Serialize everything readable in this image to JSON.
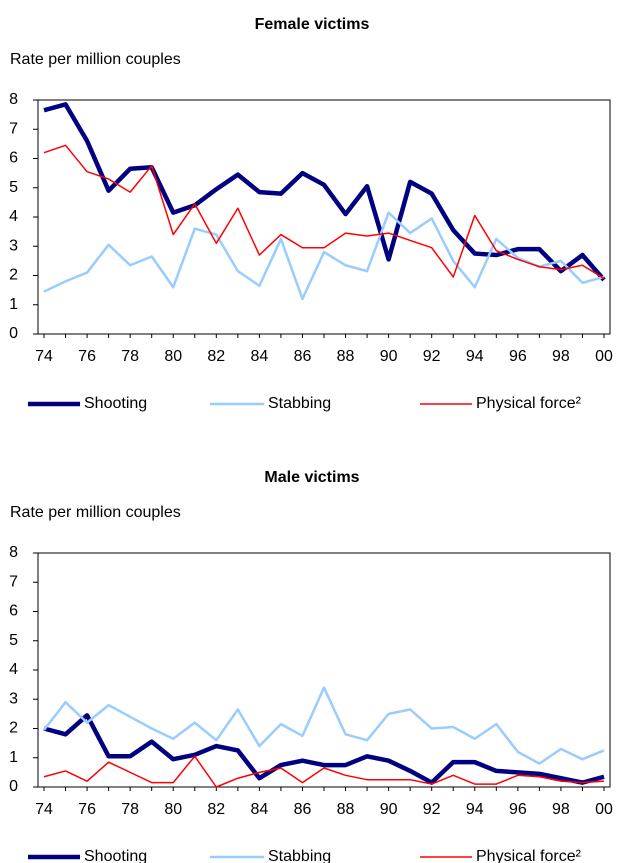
{
  "chart_data": [
    {
      "type": "line",
      "title": "Female victims",
      "y_label": "Rate per million couples",
      "categories": [
        "74",
        null,
        "76",
        null,
        "78",
        null,
        "80",
        null,
        "82",
        null,
        "84",
        null,
        "86",
        null,
        "88",
        null,
        "90",
        null,
        "92",
        null,
        "94",
        null,
        "96",
        null,
        "98",
        null,
        "00"
      ],
      "ylim": [
        0,
        8
      ],
      "yticks": [
        0,
        1,
        2,
        3,
        4,
        5,
        6,
        7,
        8
      ],
      "series": [
        {
          "name": "Shooting",
          "color": "#000080",
          "values": [
            7.65,
            7.85,
            6.6,
            4.9,
            5.65,
            5.7,
            4.15,
            4.4,
            4.95,
            5.45,
            4.85,
            4.8,
            5.5,
            5.1,
            4.1,
            5.05,
            2.55,
            5.2,
            4.8,
            3.55,
            2.75,
            2.7,
            2.9,
            2.9,
            2.15,
            2.7,
            1.85
          ]
        },
        {
          "name": "Stabbing",
          "color": "#99ccff",
          "values": [
            1.45,
            1.8,
            2.1,
            3.05,
            2.35,
            2.65,
            1.6,
            3.6,
            3.4,
            2.15,
            1.65,
            3.25,
            1.2,
            2.8,
            2.35,
            2.15,
            4.15,
            3.45,
            3.95,
            2.5,
            1.6,
            3.25,
            2.6,
            2.3,
            2.5,
            1.75,
            1.95
          ]
        },
        {
          "name": "Physical force²",
          "color": "#ff0000",
          "values": [
            6.2,
            6.45,
            5.55,
            5.3,
            4.85,
            5.75,
            3.4,
            4.45,
            3.1,
            4.3,
            2.7,
            3.4,
            2.95,
            2.95,
            3.45,
            3.35,
            3.45,
            3.2,
            2.95,
            1.95,
            4.05,
            2.85,
            2.55,
            2.3,
            2.2,
            2.35,
            1.9
          ]
        }
      ]
    },
    {
      "type": "line",
      "title": "Male victims",
      "y_label": "Rate per million couples",
      "categories": [
        "74",
        null,
        "76",
        null,
        "78",
        null,
        "80",
        null,
        "82",
        null,
        "84",
        null,
        "86",
        null,
        "88",
        null,
        "90",
        null,
        "92",
        null,
        "94",
        null,
        "96",
        null,
        "98",
        null,
        "00"
      ],
      "ylim": [
        0,
        8
      ],
      "yticks": [
        0,
        1,
        2,
        3,
        4,
        5,
        6,
        7,
        8
      ],
      "series": [
        {
          "name": "Shooting",
          "color": "#000080",
          "values": [
            2.0,
            1.8,
            2.45,
            1.05,
            1.05,
            1.55,
            0.95,
            1.1,
            1.4,
            1.25,
            0.3,
            0.75,
            0.9,
            0.75,
            0.75,
            1.05,
            0.9,
            0.55,
            0.15,
            0.85,
            0.85,
            0.55,
            0.5,
            0.45,
            0.3,
            0.15,
            0.35
          ]
        },
        {
          "name": "Stabbing",
          "color": "#99ccff",
          "values": [
            1.95,
            2.9,
            2.2,
            2.8,
            2.4,
            2.0,
            1.65,
            2.2,
            1.6,
            2.65,
            1.4,
            2.15,
            1.75,
            3.4,
            1.8,
            1.6,
            2.5,
            2.65,
            2.0,
            2.05,
            1.65,
            2.15,
            1.2,
            0.8,
            1.3,
            0.95,
            1.25
          ]
        },
        {
          "name": "Physical force²",
          "color": "#ff0000",
          "values": [
            0.35,
            0.55,
            0.2,
            0.85,
            0.5,
            0.15,
            0.15,
            1.05,
            0.0,
            0.3,
            0.5,
            0.65,
            0.15,
            0.65,
            0.4,
            0.25,
            0.25,
            0.25,
            0.1,
            0.4,
            0.1,
            0.1,
            0.4,
            0.35,
            0.2,
            0.15,
            0.2
          ]
        }
      ]
    }
  ]
}
